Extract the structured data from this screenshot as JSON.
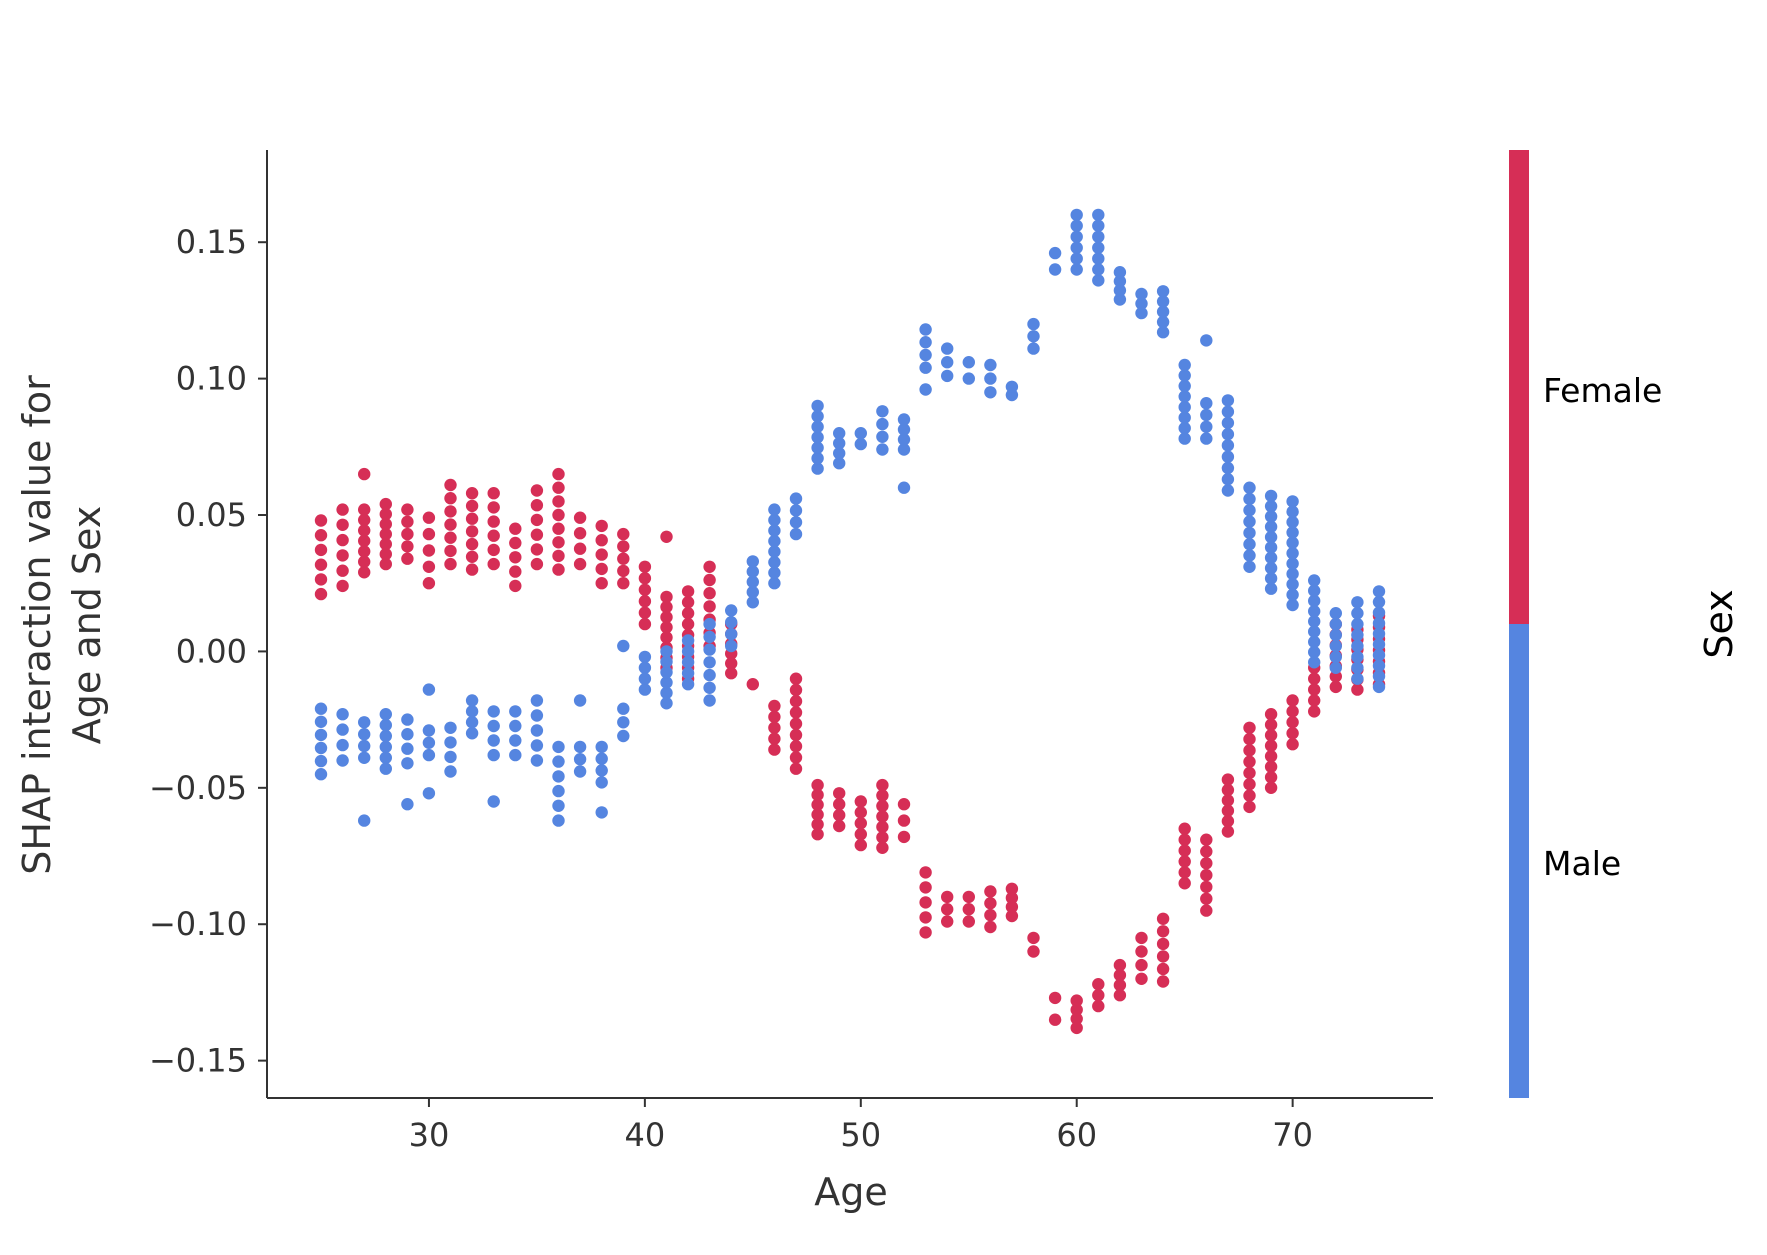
{
  "chart_data": {
    "type": "scatter",
    "title": "",
    "xlabel": "Age",
    "ylabel_lines": [
      "SHAP interaction value for",
      "Age and Sex"
    ],
    "xlim": [
      22.5,
      76.5
    ],
    "ylim": [
      -0.1637,
      0.1838
    ],
    "x_ticks": [
      30,
      40,
      50,
      60,
      70
    ],
    "x_tick_labels": [
      "30",
      "40",
      "50",
      "60",
      "70"
    ],
    "y_ticks": [
      0.15,
      0.1,
      0.05,
      0.0,
      -0.05,
      -0.1,
      -0.15
    ],
    "y_tick_labels": [
      "0.15",
      "0.10",
      "0.05",
      "0.00",
      "−0.05",
      "−0.10",
      "−0.15"
    ],
    "grid": false,
    "colorbar": {
      "title": "Sex",
      "top_label": "Female",
      "bottom_label": "Male",
      "top_color": "#d62e56",
      "bottom_color": "#5585e0"
    },
    "series": [
      {
        "name": "Female",
        "color": "#d62e56",
        "ranges": [
          [
            25,
            0.021,
            0.048,
            0.005
          ],
          [
            26,
            0.024,
            0.052,
            0.006
          ],
          [
            27,
            0.029,
            0.052,
            0.004
          ],
          [
            27,
            0.065,
            0.065,
            0.01
          ],
          [
            28,
            0.032,
            0.054,
            0.004
          ],
          [
            29,
            0.034,
            0.052,
            0.005
          ],
          [
            30,
            0.025,
            0.049,
            0.006
          ],
          [
            31,
            0.032,
            0.061,
            0.005
          ],
          [
            32,
            0.03,
            0.058,
            0.005
          ],
          [
            33,
            0.032,
            0.058,
            0.005
          ],
          [
            34,
            0.024,
            0.045,
            0.005
          ],
          [
            35,
            0.032,
            0.059,
            0.005
          ],
          [
            36,
            0.03,
            0.065,
            0.005
          ],
          [
            37,
            0.032,
            0.049,
            0.005
          ],
          [
            38,
            0.025,
            0.046,
            0.005
          ],
          [
            39,
            0.025,
            0.043,
            0.005
          ],
          [
            40,
            0.01,
            0.031,
            0.004
          ],
          [
            41,
            -0.006,
            0.02,
            0.004
          ],
          [
            41,
            0.042,
            0.042,
            0.01
          ],
          [
            42,
            -0.01,
            0.022,
            0.004
          ],
          [
            43,
            0.002,
            0.031,
            0.005
          ],
          [
            44,
            -0.008,
            0.01,
            0.004
          ],
          [
            45,
            -0.012,
            -0.01,
            0.01
          ],
          [
            46,
            -0.036,
            -0.02,
            0.004
          ],
          [
            47,
            -0.043,
            -0.01,
            0.004
          ],
          [
            48,
            -0.067,
            -0.049,
            0.004
          ],
          [
            49,
            -0.064,
            -0.052,
            0.004
          ],
          [
            50,
            -0.071,
            -0.055,
            0.004
          ],
          [
            51,
            -0.072,
            -0.049,
            0.004
          ],
          [
            52,
            -0.068,
            -0.056,
            0.006
          ],
          [
            53,
            -0.103,
            -0.081,
            0.006
          ],
          [
            54,
            -0.099,
            -0.09,
            0.004
          ],
          [
            55,
            -0.099,
            -0.09,
            0.004
          ],
          [
            56,
            -0.101,
            -0.088,
            0.004
          ],
          [
            57,
            -0.097,
            -0.087,
            0.004
          ],
          [
            58,
            -0.11,
            -0.105,
            0.005
          ],
          [
            59,
            -0.135,
            -0.127,
            0.008
          ],
          [
            60,
            -0.138,
            -0.128,
            0.004
          ],
          [
            61,
            -0.13,
            -0.122,
            0.004
          ],
          [
            62,
            -0.126,
            -0.115,
            0.004
          ],
          [
            63,
            -0.12,
            -0.105,
            0.005
          ],
          [
            64,
            -0.121,
            -0.098,
            0.005
          ],
          [
            65,
            -0.085,
            -0.065,
            0.004
          ],
          [
            66,
            -0.095,
            -0.069,
            0.004
          ],
          [
            67,
            -0.066,
            -0.047,
            0.004
          ],
          [
            68,
            -0.057,
            -0.028,
            0.004
          ],
          [
            69,
            -0.05,
            -0.023,
            0.004
          ],
          [
            70,
            -0.034,
            -0.018,
            0.004
          ],
          [
            71,
            -0.022,
            -0.006,
            0.004
          ],
          [
            72,
            -0.013,
            0.01,
            0.004
          ],
          [
            73,
            -0.014,
            0.008,
            0.004
          ],
          [
            74,
            -0.012,
            0.013,
            0.004
          ]
        ]
      },
      {
        "name": "Male",
        "color": "#5585e0",
        "ranges": [
          [
            25,
            -0.045,
            -0.021,
            0.005
          ],
          [
            26,
            -0.04,
            -0.023,
            0.006
          ],
          [
            27,
            -0.039,
            -0.026,
            0.005
          ],
          [
            27,
            -0.062,
            -0.062,
            0.01
          ],
          [
            28,
            -0.043,
            -0.023,
            0.004
          ],
          [
            29,
            -0.041,
            -0.025,
            0.005
          ],
          [
            29,
            -0.056,
            -0.056,
            0.01
          ],
          [
            30,
            -0.038,
            -0.029,
            0.005
          ],
          [
            30,
            -0.052,
            -0.052,
            0.01
          ],
          [
            30,
            -0.014,
            -0.014,
            0.01
          ],
          [
            31,
            -0.044,
            -0.028,
            0.005
          ],
          [
            32,
            -0.03,
            -0.018,
            0.004
          ],
          [
            33,
            -0.038,
            -0.022,
            0.005
          ],
          [
            33,
            -0.055,
            -0.055,
            0.01
          ],
          [
            34,
            -0.038,
            -0.022,
            0.005
          ],
          [
            35,
            -0.04,
            -0.018,
            0.005
          ],
          [
            36,
            -0.062,
            -0.035,
            0.005
          ],
          [
            37,
            -0.044,
            -0.035,
            0.005
          ],
          [
            37,
            -0.018,
            -0.018,
            0.01
          ],
          [
            38,
            -0.048,
            -0.035,
            0.005
          ],
          [
            38,
            -0.059,
            -0.059,
            0.01
          ],
          [
            39,
            -0.031,
            -0.021,
            0.005
          ],
          [
            39,
            0.002,
            0.002,
            0.01
          ],
          [
            40,
            -0.014,
            -0.002,
            0.004
          ],
          [
            41,
            -0.019,
            0.0,
            0.004
          ],
          [
            42,
            -0.012,
            0.004,
            0.004
          ],
          [
            43,
            -0.018,
            0.01,
            0.005
          ],
          [
            44,
            0.002,
            0.015,
            0.005
          ],
          [
            45,
            0.018,
            0.033,
            0.004
          ],
          [
            46,
            0.025,
            0.052,
            0.004
          ],
          [
            47,
            0.043,
            0.056,
            0.004
          ],
          [
            48,
            0.067,
            0.09,
            0.004
          ],
          [
            49,
            0.069,
            0.08,
            0.004
          ],
          [
            50,
            0.076,
            0.08,
            0.004
          ],
          [
            51,
            0.074,
            0.088,
            0.004
          ],
          [
            52,
            0.074,
            0.085,
            0.004
          ],
          [
            52,
            0.06,
            0.06,
            0.01
          ],
          [
            53,
            0.104,
            0.118,
            0.004
          ],
          [
            53,
            0.096,
            0.096,
            0.01
          ],
          [
            54,
            0.101,
            0.111,
            0.004
          ],
          [
            55,
            0.1,
            0.106,
            0.006
          ],
          [
            56,
            0.095,
            0.105,
            0.004
          ],
          [
            57,
            0.094,
            0.097,
            0.003
          ],
          [
            58,
            0.111,
            0.12,
            0.004
          ],
          [
            59,
            0.14,
            0.146,
            0.006
          ],
          [
            60,
            0.14,
            0.16,
            0.004
          ],
          [
            61,
            0.136,
            0.16,
            0.004
          ],
          [
            62,
            0.129,
            0.139,
            0.004
          ],
          [
            63,
            0.124,
            0.131,
            0.004
          ],
          [
            64,
            0.117,
            0.132,
            0.004
          ],
          [
            65,
            0.078,
            0.105,
            0.004
          ],
          [
            66,
            0.078,
            0.091,
            0.004
          ],
          [
            66,
            0.114,
            0.114,
            0.01
          ],
          [
            67,
            0.059,
            0.092,
            0.004
          ],
          [
            68,
            0.031,
            0.06,
            0.004
          ],
          [
            69,
            0.023,
            0.057,
            0.004
          ],
          [
            70,
            0.017,
            0.055,
            0.004
          ],
          [
            71,
            -0.004,
            0.026,
            0.004
          ],
          [
            72,
            -0.006,
            0.014,
            0.004
          ],
          [
            73,
            -0.01,
            0.018,
            0.004
          ],
          [
            74,
            -0.013,
            0.022,
            0.004
          ]
        ]
      }
    ]
  }
}
